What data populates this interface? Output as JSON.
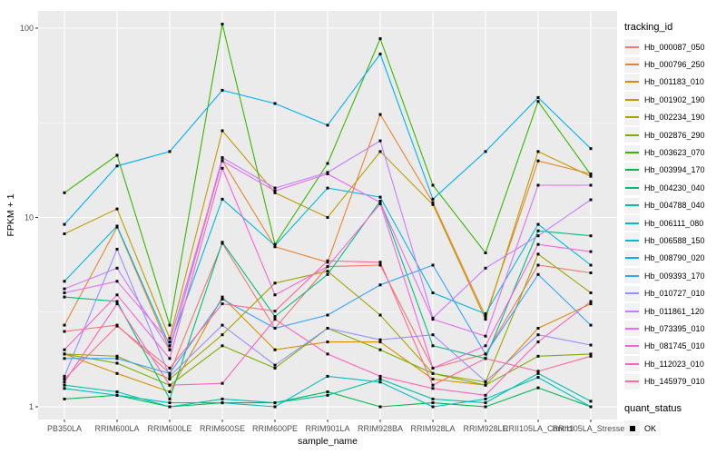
{
  "figure": {
    "background": "#FFFFFF",
    "panel_background": "#EBEBEB",
    "grid_color": "#FFFFFF",
    "tick_mark_color": "#333333",
    "tick_label_color": "#4D4D4D",
    "point_color": "#000000"
  },
  "legend": {
    "tracking_title": "tracking_id",
    "quant_title": "quant_status",
    "quant_items": [
      {
        "label": "OK",
        "marker": "black-square"
      }
    ]
  },
  "chart_data": {
    "type": "line",
    "title": "",
    "xlabel": "sample_name",
    "ylabel": "FPKM + 1",
    "y_scale": "log10",
    "y_ticks": [
      1,
      10,
      100
    ],
    "y_minor_ticks": [
      3.1623,
      31.623
    ],
    "ylim": [
      0.86,
      123
    ],
    "grid": "major+minor horizontal, major vertical per category",
    "legend_position": "right",
    "point_shape": "filled-square",
    "categories": [
      "PB350LA",
      "RRIM600LA",
      "RRIM600LE",
      "RRIM600SE",
      "RRIM600PE",
      "RRIM901LA",
      "RRIM928BA",
      "RRIM928LA",
      "RRIM928LE",
      "RRII105LA_Control",
      "RRII105LA_Stressed"
    ],
    "series": [
      {
        "name": "Hb_000087_050",
        "color": "#F8766D",
        "values": [
          2.5,
          2.7,
          1.5,
          7.3,
          2.6,
          5.5,
          5.6,
          1.6,
          1.9,
          5.6,
          5.1
        ]
      },
      {
        "name": "Hb_000796_250",
        "color": "#EA8331",
        "values": [
          2.7,
          8.9,
          2.0,
          20.0,
          7.0,
          5.8,
          35.0,
          12.0,
          3.0,
          19.9,
          17.0
        ]
      },
      {
        "name": "Hb_001183_010",
        "color": "#D89000",
        "values": [
          1.9,
          1.5,
          1.2,
          3.8,
          2.0,
          2.2,
          2.2,
          1.4,
          1.3,
          2.6,
          3.5
        ]
      },
      {
        "name": "Hb_001902_190",
        "color": "#C09B00",
        "values": [
          8.2,
          11.1,
          2.3,
          28.7,
          13.5,
          10.0,
          22.3,
          11.7,
          2.9,
          22.3,
          16.5
        ]
      },
      {
        "name": "Hb_002234_190",
        "color": "#A3A500",
        "values": [
          1.9,
          1.85,
          1.4,
          2.4,
          4.5,
          5.2,
          3.05,
          1.5,
          1.35,
          6.4,
          4.0
        ]
      },
      {
        "name": "Hb_002876_290",
        "color": "#7CAE00",
        "values": [
          1.9,
          1.7,
          1.3,
          2.1,
          1.6,
          2.6,
          2.0,
          1.5,
          1.3,
          1.85,
          1.9
        ]
      },
      {
        "name": "Hb_003623_070",
        "color": "#39B600",
        "values": [
          13.5,
          21.3,
          2.7,
          105.0,
          7.2,
          19.3,
          88.0,
          14.8,
          6.5,
          41.0,
          16.8
        ]
      },
      {
        "name": "Hb_003994_170",
        "color": "#00BB4E",
        "values": [
          1.1,
          1.15,
          1.0,
          1.05,
          1.05,
          1.2,
          1.0,
          1.05,
          1.0,
          1.26,
          1.0
        ]
      },
      {
        "name": "Hb_004230_040",
        "color": "#00BF7D",
        "values": [
          3.8,
          3.6,
          1.1,
          7.4,
          3.0,
          5.0,
          12.2,
          2.1,
          1.8,
          8.5,
          8.0
        ]
      },
      {
        "name": "Hb_004788_040",
        "color": "#00C1A3",
        "values": [
          1.3,
          1.2,
          1.0,
          1.1,
          1.05,
          1.15,
          1.4,
          1.1,
          1.05,
          1.5,
          1.07
        ]
      },
      {
        "name": "Hb_006111_080",
        "color": "#00BFC4",
        "values": [
          1.25,
          1.15,
          1.05,
          1.05,
          1.0,
          1.45,
          1.35,
          1.0,
          1.1,
          1.43,
          1.0
        ]
      },
      {
        "name": "Hb_006588_150",
        "color": "#00BAE0",
        "values": [
          4.6,
          9.0,
          2.1,
          12.5,
          7.1,
          14.3,
          12.8,
          4.0,
          3.1,
          9.2,
          5.6
        ]
      },
      {
        "name": "Hb_008790_020",
        "color": "#00B0F6",
        "values": [
          9.2,
          18.7,
          22.3,
          47.0,
          40.0,
          30.7,
          73.0,
          12.5,
          22.3,
          43.0,
          23.1
        ]
      },
      {
        "name": "Hb_009393_170",
        "color": "#35A2FF",
        "values": [
          1.8,
          1.8,
          1.5,
          3.7,
          2.6,
          3.05,
          4.4,
          5.6,
          1.9,
          5.0,
          2.7
        ]
      },
      {
        "name": "Hb_010727_010",
        "color": "#9590FF",
        "values": [
          1.45,
          6.8,
          1.45,
          2.7,
          1.66,
          2.6,
          2.26,
          2.4,
          1.36,
          2.4,
          2.12
        ]
      },
      {
        "name": "Hb_011861_120",
        "color": "#C77CFF",
        "values": [
          4.2,
          5.4,
          2.0,
          20.7,
          14.3,
          17.3,
          25.4,
          2.94,
          5.4,
          8.0,
          12.4
        ]
      },
      {
        "name": "Hb_073395_010",
        "color": "#E76BF3",
        "values": [
          4.0,
          4.6,
          2.2,
          19.9,
          13.8,
          17.0,
          12.0,
          2.9,
          2.36,
          14.8,
          14.8
        ]
      },
      {
        "name": "Hb_081745_010",
        "color": "#FA62DB",
        "values": [
          2.0,
          3.9,
          1.8,
          18.2,
          3.9,
          5.5,
          11.8,
          1.6,
          2.1,
          7.2,
          6.6
        ]
      },
      {
        "name": "Hb_112023_010",
        "color": "#FF62BC",
        "values": [
          1.35,
          3.5,
          1.3,
          1.33,
          2.9,
          1.9,
          1.45,
          1.25,
          1.15,
          2.2,
          3.6
        ]
      },
      {
        "name": "Hb_145979_010",
        "color": "#FF6A98",
        "values": [
          1.4,
          2.67,
          1.6,
          3.5,
          3.2,
          5.9,
          5.8,
          1.3,
          1.8,
          1.54,
          1.85
        ]
      }
    ]
  }
}
